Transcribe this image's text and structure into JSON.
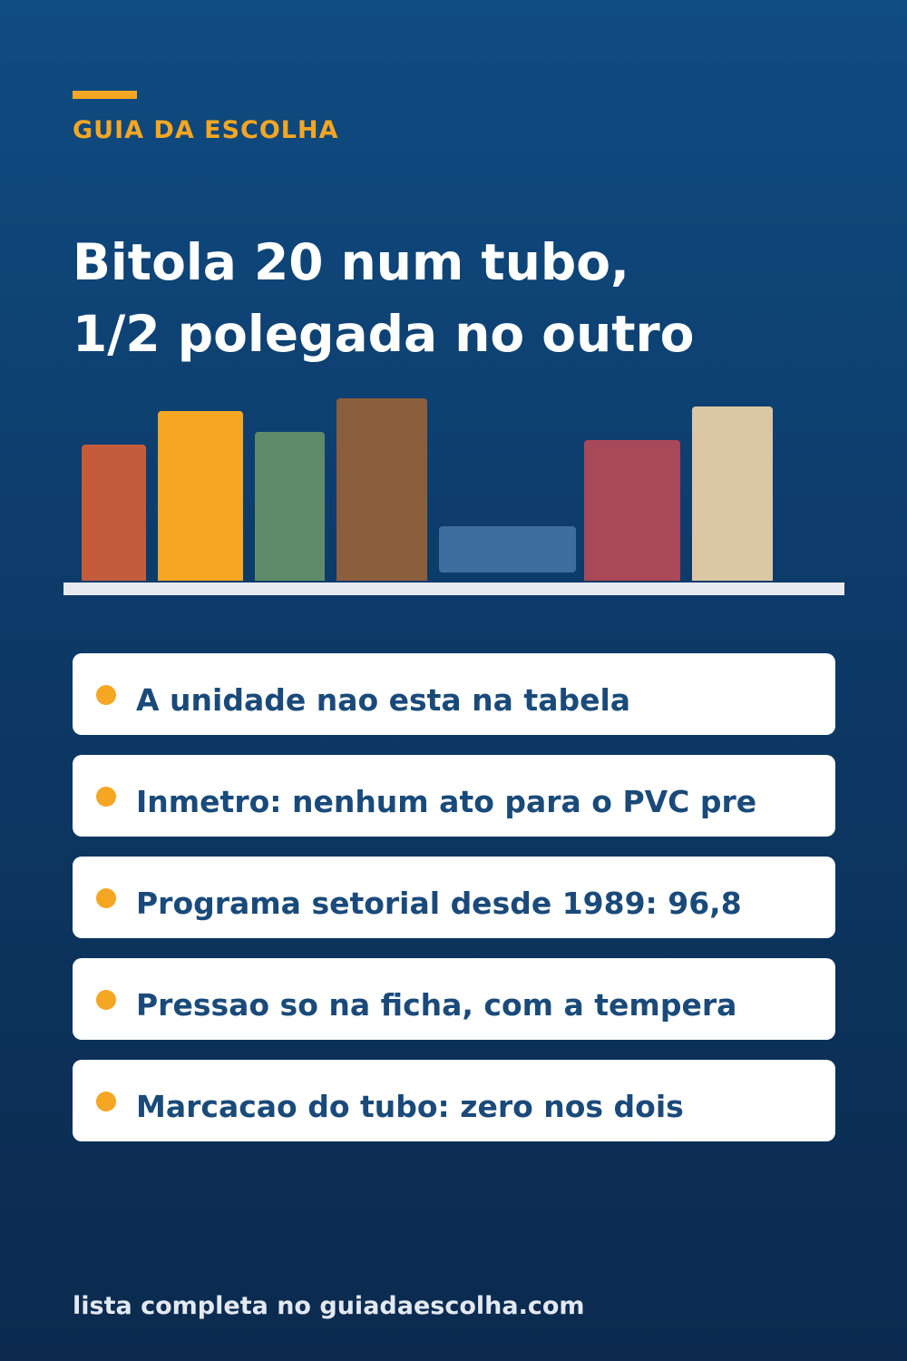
{
  "brand": {
    "label": "GUIA DA ESCOLHA",
    "accent_color": "#f5a623"
  },
  "title": {
    "line1": "Bitola 20 num tubo,",
    "line2": "1/2 polegada no outro"
  },
  "illustration": {
    "name": "bookshelf",
    "book_colors": [
      "#c45c3c",
      "#f5a623",
      "#5f8b6a",
      "#8b5e3c",
      "#3e6d9f",
      "#a84858",
      "#dcc7a4"
    ]
  },
  "facts": [
    "A unidade nao esta na tabela",
    "Inmetro: nenhum ato para o PVC pre",
    "Programa setorial desde 1989: 96,8",
    "Pressao so na ficha, com a tempera",
    "Marcacao do tubo: zero nos dois"
  ],
  "footer": {
    "text": "lista completa no guiadaescolha.com"
  },
  "colors": {
    "background_top": "#0f4c82",
    "background_bottom": "#0b2a4e",
    "card_background": "#ffffff",
    "card_text": "#1a4a7a"
  }
}
